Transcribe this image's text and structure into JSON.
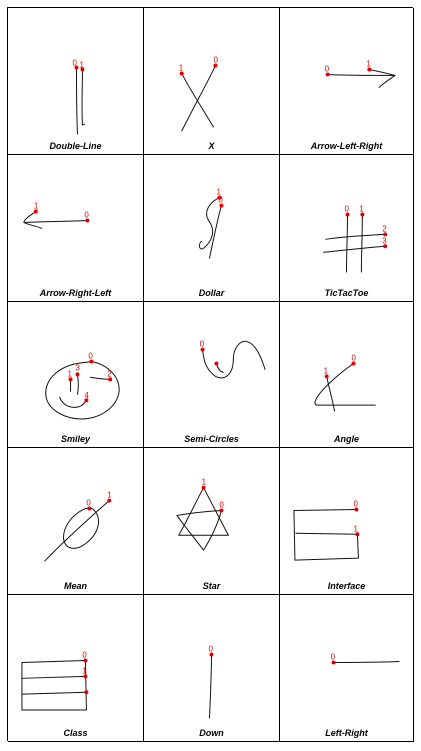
{
  "gestures": [
    {
      "name": "Double-Line",
      "points": [
        "0",
        "1"
      ]
    },
    {
      "name": "X",
      "points": [
        "1",
        "0"
      ]
    },
    {
      "name": "Arrow-Left-Right",
      "points": [
        "0",
        "1"
      ]
    },
    {
      "name": "Arrow-Right-Left",
      "points": [
        "1",
        "0"
      ]
    },
    {
      "name": "Dollar",
      "points": [
        "1",
        "0"
      ]
    },
    {
      "name": "TicTacToe",
      "points": [
        "0",
        "1",
        "2",
        "3"
      ]
    },
    {
      "name": "Smiley",
      "points": [
        "0",
        "1",
        "3",
        "2",
        "4"
      ]
    },
    {
      "name": "Semi-Circles",
      "points": [
        "0"
      ]
    },
    {
      "name": "Angle",
      "points": [
        "1",
        "0"
      ]
    },
    {
      "name": "Mean",
      "points": [
        "0",
        "1"
      ]
    },
    {
      "name": "Star",
      "points": [
        "1",
        "0"
      ]
    },
    {
      "name": "Interface",
      "points": [
        "0",
        "1"
      ]
    },
    {
      "name": "Class",
      "points": [
        "0",
        "1"
      ]
    },
    {
      "name": "Down",
      "points": [
        "0"
      ]
    },
    {
      "name": "Left-Right",
      "points": [
        "0"
      ]
    }
  ]
}
